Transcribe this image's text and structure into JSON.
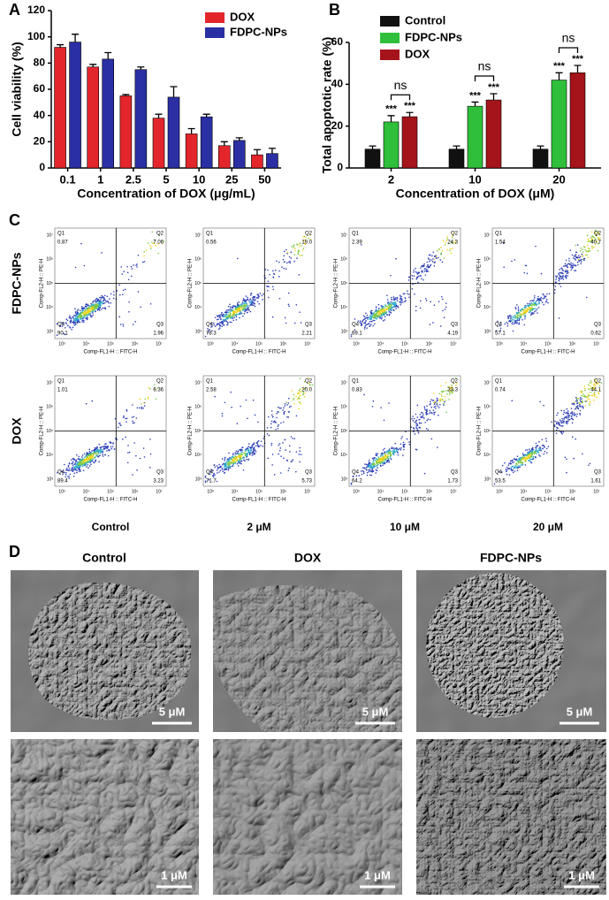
{
  "panel_labels": [
    "A",
    "B",
    "C",
    "D"
  ],
  "chart_data": [
    {
      "type": "bar",
      "ylabel": "Cell viability (%)",
      "xlabel": "Concentration of DOX (μg/mL)",
      "categories": [
        "0.1",
        "1",
        "2.5",
        "5",
        "10",
        "25",
        "50"
      ],
      "series": [
        {
          "name": "DOX",
          "color": "#e3262b",
          "values": [
            92,
            77,
            55,
            38,
            26,
            17,
            10
          ],
          "errors": [
            2,
            2,
            1,
            3,
            4,
            3,
            4
          ]
        },
        {
          "name": "FDPC-NPs",
          "color": "#2a2fa3",
          "values": [
            96,
            83,
            75,
            54,
            39,
            21,
            11
          ],
          "errors": [
            6,
            5,
            2,
            8,
            2,
            2,
            4
          ]
        }
      ],
      "ylim": [
        0,
        120
      ],
      "yticks": [
        0,
        20,
        40,
        60,
        80,
        100,
        120
      ]
    },
    {
      "type": "bar",
      "ylabel": "Total apoptotic rate (%)",
      "xlabel": "Concentration of DOX (μM)",
      "categories": [
        "2",
        "10",
        "20"
      ],
      "series": [
        {
          "name": "Control",
          "color": "#111111",
          "values": [
            9,
            9,
            9
          ],
          "errors": [
            1.5,
            1.5,
            1.5
          ]
        },
        {
          "name": "FDPC-NPs",
          "color": "#2fbf3a",
          "values": [
            22,
            29.5,
            42
          ],
          "errors": [
            3,
            2,
            3.5
          ],
          "annotations": [
            "***",
            "***",
            "***"
          ]
        },
        {
          "name": "DOX",
          "color": "#a5141b",
          "values": [
            24.5,
            32.5,
            45.5
          ],
          "errors": [
            2,
            3,
            3.5
          ],
          "annotations": [
            "***",
            "***",
            "***"
          ]
        }
      ],
      "comparisons": [
        "ns",
        "ns",
        "ns"
      ],
      "ylim": [
        0,
        60
      ],
      "yticks": [
        0,
        20,
        40,
        60
      ]
    }
  ],
  "flow": {
    "row_labels": [
      "FDPC-NPs",
      "DOX"
    ],
    "column_labels": [
      "Control",
      "2 μM",
      "10 μM",
      "20 μM"
    ],
    "quadrant_names": [
      "Q1",
      "Q2",
      "Q3",
      "Q4"
    ],
    "x_axis_label": "Comp-FL1-H :: FITC-H",
    "y_axis_label": "Comp-FL2-H :: PE-H",
    "axis_ticks": [
      "10³",
      "10⁴",
      "10⁵",
      "10⁶",
      "10⁷"
    ],
    "plots": [
      [
        [
          "0.87",
          "7.06",
          "1.96",
          "90.1"
        ],
        [
          "0.56",
          "19.0",
          "2.21",
          "78.3"
        ],
        [
          "2.39",
          "24.3",
          "4.19",
          "69.1"
        ],
        [
          "1.54",
          "40.7",
          "0.62",
          "57.1"
        ]
      ],
      [
        [
          "1.01",
          "6.36",
          "3.23",
          "89.4"
        ],
        [
          "2.58",
          "20.0",
          "5.73",
          "71.7"
        ],
        [
          "0.83",
          "33.3",
          "1.73",
          "64.2"
        ],
        [
          "0.74",
          "44.1",
          "1.61",
          "53.5"
        ]
      ]
    ]
  },
  "sem": {
    "column_labels": [
      "Control",
      "DOX",
      "FDPC-NPs"
    ],
    "scale_bars": [
      "5 μM",
      "1 μM"
    ]
  }
}
